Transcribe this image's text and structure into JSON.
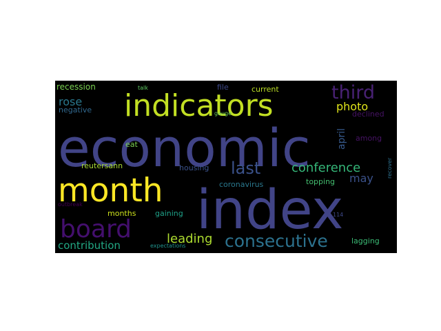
{
  "background": "#000000",
  "words": [
    {
      "text": "economic",
      "color": "#414487"
    },
    {
      "text": "index",
      "color": "#414487"
    },
    {
      "text": "indicators",
      "color": "#c2df23"
    },
    {
      "text": "month",
      "color": "#fde725"
    },
    {
      "text": "board",
      "color": "#440f6e"
    },
    {
      "text": "third",
      "color": "#482173"
    },
    {
      "text": "consecutive",
      "color": "#2c728e"
    },
    {
      "text": "last",
      "color": "#3b528b"
    },
    {
      "text": "conference",
      "color": "#35b779"
    },
    {
      "text": "photo",
      "color": "#e0e41a"
    },
    {
      "text": "rose",
      "color": "#2a788e"
    },
    {
      "text": "leading",
      "color": "#addc30"
    },
    {
      "text": "april",
      "color": "#375a8c"
    },
    {
      "text": "may",
      "color": "#3b528b"
    },
    {
      "text": "contribution",
      "color": "#22a884"
    },
    {
      "text": "recession",
      "color": "#7ad151"
    },
    {
      "text": "current",
      "color": "#bddf26"
    },
    {
      "text": "file",
      "color": "#3e4989"
    },
    {
      "text": "negative",
      "color": "#31688e"
    },
    {
      "text": "declined",
      "color": "#471365"
    },
    {
      "text": "eat",
      "color": "#7ad151"
    },
    {
      "text": "among",
      "color": "#471365"
    },
    {
      "text": "reutersann",
      "color": "#a8db34"
    },
    {
      "text": "housing",
      "color": "#3b528b"
    },
    {
      "text": "coronavirus",
      "color": "#2a788e"
    },
    {
      "text": "topping",
      "color": "#44bf70"
    },
    {
      "text": "months",
      "color": "#cde11d"
    },
    {
      "text": "gaining",
      "color": "#1fa188"
    },
    {
      "text": "lagging",
      "color": "#3bbb75"
    },
    {
      "text": "talk",
      "color": "#5ec962"
    },
    {
      "text": "gauge",
      "color": "#6ece58"
    },
    {
      "text": "recover",
      "color": "#2d708e"
    },
    {
      "text": "outbreak",
      "color": "#440154"
    },
    {
      "text": "114",
      "color": "#3e4989"
    },
    {
      "text": "expectations",
      "color": "#20928c"
    }
  ]
}
